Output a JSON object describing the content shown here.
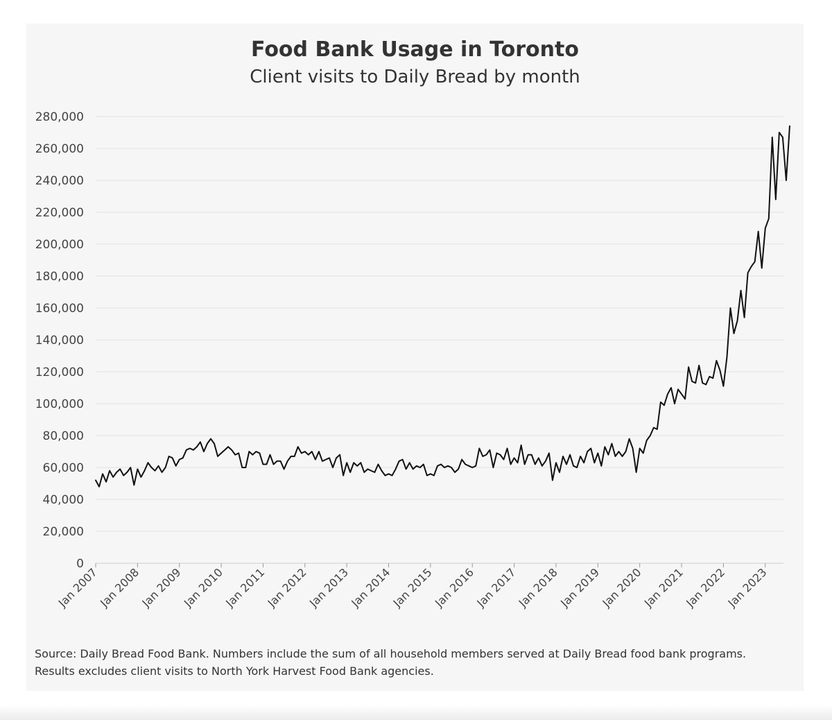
{
  "chart_data": {
    "type": "line",
    "title": "Food Bank Usage in Toronto",
    "subtitle": "Client visits to Daily Bread by month",
    "xlabel": "",
    "ylabel": "",
    "ylim": [
      0,
      280000
    ],
    "yticks": [
      0,
      20000,
      40000,
      60000,
      80000,
      100000,
      120000,
      140000,
      160000,
      180000,
      200000,
      220000,
      240000,
      260000,
      280000
    ],
    "ytick_labels": [
      "0",
      "20,000",
      "40,000",
      "60,000",
      "80,000",
      "100,000",
      "120,000",
      "140,000",
      "160,000",
      "180,000",
      "200,000",
      "220,000",
      "240,000",
      "260,000",
      "280,000"
    ],
    "xtick_labels": [
      "Jan 2007",
      "Jan 2008",
      "Jan 2009",
      "Jan 2010",
      "Jan 2011",
      "Jan 2012",
      "Jan 2013",
      "Jan 2014",
      "Jan 2015",
      "Jan 2016",
      "Jan 2017",
      "Jan 2018",
      "Jan 2019",
      "Jan 2020",
      "Jan 2021",
      "Jan 2022",
      "Jan 2023"
    ],
    "x_start": "2007-01",
    "x_end": "2023-08",
    "grid": true,
    "legend": "none",
    "line_color": "#111111",
    "series": [
      {
        "values": [
          52000,
          48000,
          56000,
          51000,
          58000,
          54000,
          57000,
          59000,
          55000,
          57000,
          60000,
          49000,
          59000,
          54000,
          58000,
          63000,
          60000,
          58000,
          61000,
          57000,
          60000,
          67000,
          66000,
          61000,
          65000,
          66000,
          71000,
          72000,
          71000,
          73000,
          76000,
          70000,
          75000,
          78000,
          75000,
          67000,
          69000,
          71000,
          73000,
          71000,
          68000,
          69000,
          60000,
          60000,
          70000,
          68000,
          70000,
          69000,
          62000,
          62000,
          68000,
          62000,
          64000,
          64000,
          59000,
          64000,
          67000,
          67000,
          73000,
          69000,
          70000,
          68000,
          70000,
          65000,
          70000,
          64000,
          65000,
          66000,
          60000,
          66000,
          68000,
          55000,
          63000,
          57000,
          63000,
          61000,
          63000,
          57000,
          59000,
          58000,
          57000,
          62000,
          58000,
          55000,
          56000,
          55000,
          59000,
          64000,
          65000,
          59000,
          63000,
          59000,
          61000,
          60000,
          62000,
          55000,
          56000,
          55000,
          61000,
          62000,
          60000,
          61000,
          60000,
          57000,
          59000,
          65000,
          62000,
          61000,
          60000,
          61000,
          72000,
          67000,
          68000,
          71000,
          60000,
          69000,
          68000,
          65000,
          72000,
          62000,
          66000,
          63000,
          74000,
          62000,
          68000,
          68000,
          62000,
          66000,
          61000,
          64000,
          69000,
          52000,
          63000,
          57000,
          67000,
          62000,
          68000,
          61000,
          60000,
          67000,
          63000,
          70000,
          72000,
          63000,
          69000,
          61000,
          73000,
          68000,
          75000,
          67000,
          70000,
          67000,
          70000,
          78000,
          72000,
          57000,
          72000,
          69000,
          77000,
          80000,
          85000,
          84000,
          101000,
          99000,
          106000,
          110000,
          100000,
          109000,
          106000,
          103000,
          123000,
          114000,
          113000,
          124000,
          113000,
          112000,
          117000,
          116000,
          127000,
          121000,
          111000,
          129000,
          160000,
          144000,
          152000,
          171000,
          154000,
          182000,
          186000,
          189000,
          208000,
          185000,
          210000,
          216000,
          267000,
          228000,
          270000,
          267000,
          240000,
          274000
        ]
      }
    ]
  },
  "source_note": {
    "line1": "Source: Daily Bread Food Bank. Numbers include the sum of all household members served at Daily Bread food bank programs.",
    "line2": "Results excludes client visits to North York Harvest Food Bank agencies."
  }
}
